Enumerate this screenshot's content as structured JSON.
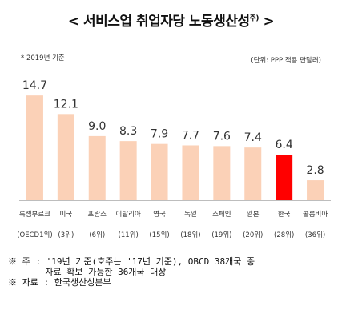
{
  "chart_data": {
    "type": "bar",
    "title_main": "< 서비스업 취업자당 노동생산성",
    "title_sup": "주)",
    "title_end": " >",
    "subnote": "* 2019년 기준",
    "unit_label": "(단위: PPP 적용 만달러)",
    "categories": [
      "룩셈부르크",
      "미국",
      "프랑스",
      "이탈리아",
      "영국",
      "독일",
      "스페인",
      "일본",
      "한국",
      "콜롬비아"
    ],
    "ranks": [
      "(OECD1위)",
      "(3위)",
      "(6위)",
      "(11위)",
      "(15위)",
      "(18위)",
      "(19위)",
      "(20위)",
      "(28위)",
      "(36위)"
    ],
    "values": [
      14.7,
      12.1,
      9.0,
      8.3,
      7.9,
      7.7,
      7.6,
      7.4,
      6.4,
      2.8
    ],
    "value_labels": [
      "14.7",
      "12.1",
      "9.0",
      "8.3",
      "7.9",
      "7.7",
      "7.6",
      "7.4",
      "6.4",
      "2.8"
    ],
    "highlight_index": 8,
    "bar_color": "#fbd1b7",
    "highlight_color": "#ff0000"
  },
  "footnotes": {
    "line1": "※ 주 : '19년 기준(호주는 '17년 기준), OBCD 38개국 중",
    "line2": "       자료 확보 가능한 36개국 대상",
    "line3": "※ 자료 : 한국생산성본부"
  }
}
